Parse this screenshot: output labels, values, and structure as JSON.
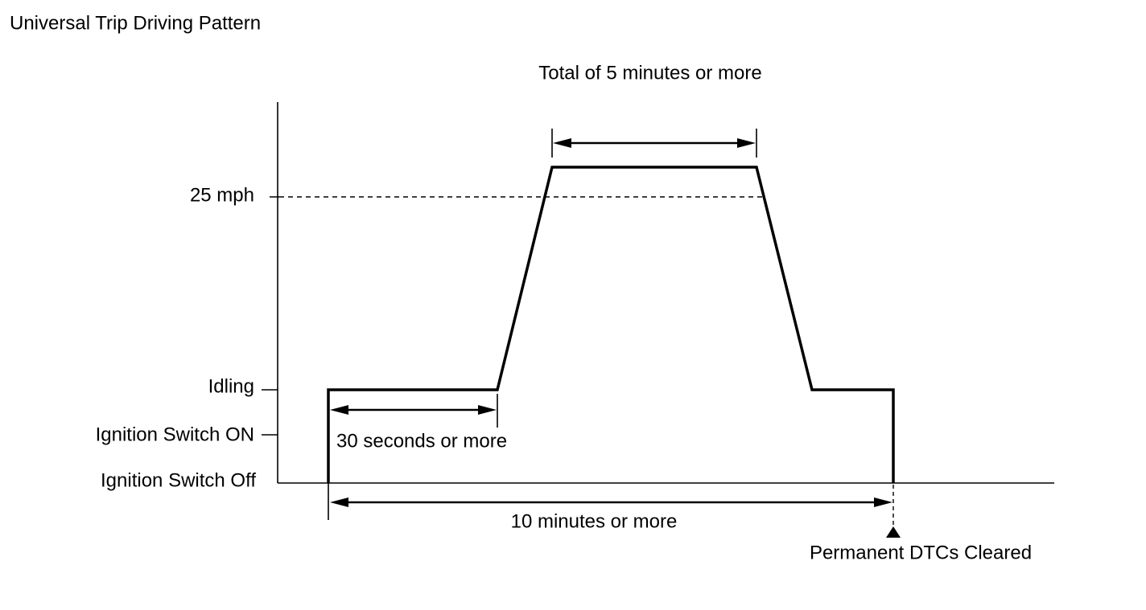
{
  "title": "Universal Trip Driving Pattern",
  "levels": [
    "25 mph",
    "Idling",
    "Ignition Switch ON",
    "Ignition Switch Off"
  ],
  "annotations": {
    "top_span": "Total of 5 minutes or more",
    "idle_span": "30 seconds or more",
    "total_span": "10 minutes or more",
    "end_marker": "Permanent DTCs Cleared"
  }
}
